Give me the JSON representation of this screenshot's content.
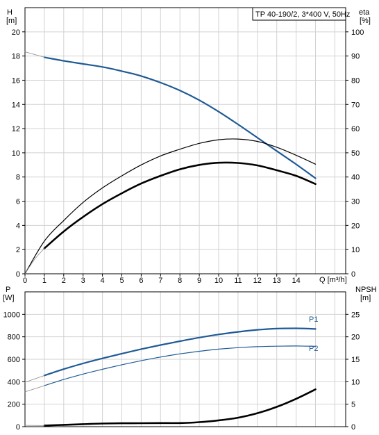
{
  "title": "TP 40-190/2, 3*400 V, 50Hz",
  "colors": {
    "blue": "#1e5a96",
    "black": "#000000",
    "grid": "#d2d2d2"
  },
  "chart_data": [
    {
      "type": "line",
      "name": "head-efficiency",
      "xlabel": "Q [m³/h]",
      "ylabel_left": [
        "H",
        "[m]"
      ],
      "ylabel_right": [
        "eta",
        "[%]"
      ],
      "xlim": [
        0,
        16
      ],
      "ylim": [
        0,
        22
      ],
      "y2lim": [
        0,
        110
      ],
      "x_ticks": [
        0,
        1,
        2,
        3,
        4,
        5,
        6,
        7,
        8,
        9,
        10,
        11,
        12,
        13,
        14
      ],
      "y_ticks": [
        0,
        2,
        4,
        6,
        8,
        10,
        12,
        14,
        16,
        18,
        20
      ],
      "y2_ticks": [
        0,
        10,
        20,
        30,
        40,
        50,
        60,
        70,
        80,
        90,
        100
      ],
      "series": [
        {
          "key": "H",
          "axis": "left",
          "color": "#1e5a96",
          "width": 2.2,
          "x": [
            1,
            2,
            3,
            4,
            5,
            6,
            7,
            8,
            9,
            10,
            11,
            12,
            13,
            14,
            15
          ],
          "y": [
            17.9,
            17.6,
            17.35,
            17.1,
            16.75,
            16.35,
            15.8,
            15.15,
            14.35,
            13.4,
            12.35,
            11.25,
            10.15,
            9.05,
            7.9
          ]
        },
        {
          "key": "H-extrapolated",
          "axis": "left",
          "color": "#888888",
          "width": 0.8,
          "x": [
            0,
            1
          ],
          "y": [
            18.35,
            17.9
          ]
        },
        {
          "key": "eta-p2",
          "axis": "right",
          "color": "#000000",
          "width": 1.2,
          "x": [
            0,
            1,
            2,
            3,
            4,
            5,
            6,
            7,
            8,
            9,
            10,
            11,
            12,
            13,
            14,
            15
          ],
          "y": [
            0,
            13.5,
            22,
            29.5,
            35.5,
            40.5,
            45,
            48.7,
            51.5,
            53.9,
            55.4,
            55.7,
            54.7,
            52.3,
            49,
            45.3
          ]
        },
        {
          "key": "eta-total",
          "axis": "right",
          "color": "#000000",
          "width": 2.6,
          "x": [
            1,
            2,
            3,
            4,
            5,
            6,
            7,
            8,
            9,
            10,
            11,
            12,
            13,
            14,
            15
          ],
          "y": [
            10.5,
            17.5,
            23.5,
            28.8,
            33.3,
            37.3,
            40.5,
            43.2,
            45,
            45.9,
            45.8,
            44.8,
            42.8,
            40.5,
            37.1
          ]
        },
        {
          "key": "eta-extrapolated",
          "axis": "right",
          "color": "#888888",
          "width": 0.8,
          "x": [
            0,
            0.5,
            1
          ],
          "y": [
            0,
            6,
            10.5
          ]
        }
      ]
    },
    {
      "type": "line",
      "name": "power-npsh",
      "ylabel_left": [
        "P",
        "[W]"
      ],
      "ylabel_right": [
        "NPSH",
        "[m]"
      ],
      "xlim": [
        0,
        16
      ],
      "ylim": [
        0,
        1200
      ],
      "y2lim": [
        0,
        30
      ],
      "y_ticks": [
        0,
        200,
        400,
        600,
        800,
        1000
      ],
      "y2_ticks": [
        0,
        5,
        10,
        15,
        20,
        25
      ],
      "series": [
        {
          "key": "P1",
          "label": "P1",
          "axis": "left",
          "color": "#1e5a96",
          "width": 2.2,
          "x": [
            1,
            2,
            3,
            4,
            5,
            6,
            7,
            8,
            9,
            10,
            11,
            12,
            13,
            14,
            15
          ],
          "y": [
            455,
            512,
            563,
            608,
            650,
            690,
            727,
            761,
            793,
            821,
            844,
            862,
            873,
            875,
            870
          ]
        },
        {
          "key": "P1-extrapolated",
          "axis": "left",
          "color": "#888888",
          "width": 0.8,
          "x": [
            0,
            1
          ],
          "y": [
            395,
            455
          ]
        },
        {
          "key": "P2",
          "label": "P2",
          "axis": "left",
          "color": "#1e5a96",
          "width": 1.2,
          "x": [
            1,
            2,
            3,
            4,
            5,
            6,
            7,
            8,
            9,
            10,
            11,
            12,
            13,
            14,
            15
          ],
          "y": [
            365,
            420,
            468,
            511,
            551,
            587,
            620,
            648,
            671,
            690,
            703,
            712,
            716,
            718,
            715
          ]
        },
        {
          "key": "P2-extrapolated",
          "axis": "left",
          "color": "#888888",
          "width": 0.8,
          "x": [
            0,
            1
          ],
          "y": [
            310,
            365
          ]
        },
        {
          "key": "NPSH",
          "axis": "right",
          "color": "#000000",
          "width": 2.6,
          "x": [
            1,
            2,
            3,
            4,
            5,
            6,
            7,
            8,
            9,
            10,
            11,
            12,
            13,
            14,
            15
          ],
          "y": [
            0.25,
            0.4,
            0.55,
            0.7,
            0.75,
            0.78,
            0.8,
            0.8,
            1.0,
            1.4,
            2.0,
            3.0,
            4.4,
            6.2,
            8.3
          ]
        },
        {
          "key": "NPSH-extrapolated",
          "axis": "right",
          "color": "#888888",
          "width": 0.8,
          "x": [
            0,
            1
          ],
          "y": [
            0.3,
            0.25
          ]
        }
      ]
    }
  ]
}
